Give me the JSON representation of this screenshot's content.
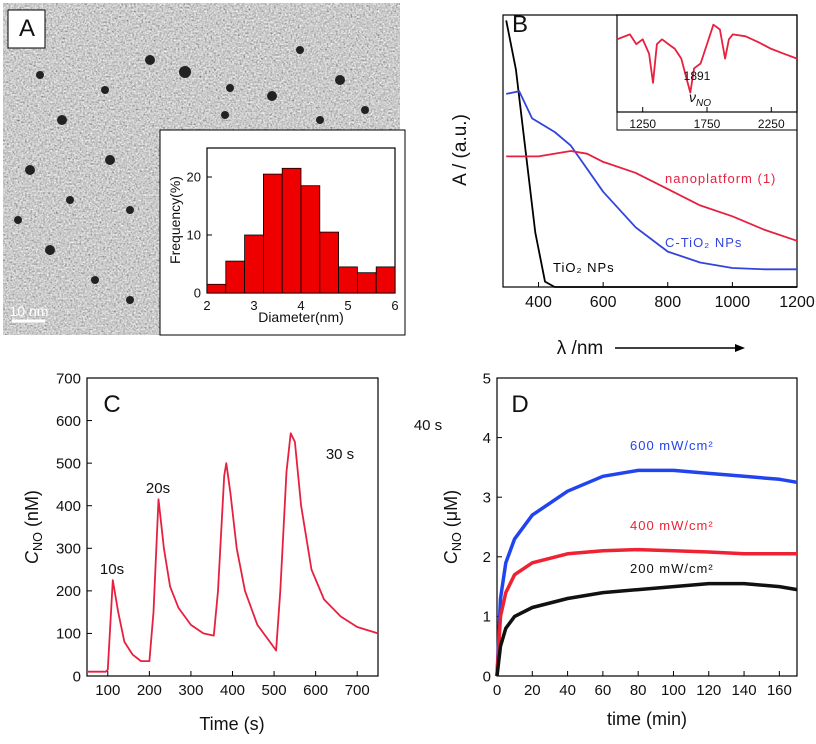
{
  "chart_data": [
    {
      "type": "histogram",
      "panel": "A",
      "scale_bar": "10 nm",
      "xlabel": "Diameter(nm)",
      "ylabel": "Frequency(%)",
      "bins": [
        2.0,
        2.4,
        2.8,
        3.2,
        3.6,
        4.0,
        4.4,
        4.8,
        5.2,
        5.6,
        6.0
      ],
      "values": [
        1.5,
        5.5,
        10,
        20.5,
        21.5,
        18.5,
        10.5,
        4.5,
        3.5,
        4.5
      ],
      "color": "#ee0000",
      "xlim": [
        2,
        6
      ],
      "xticks": [
        2,
        3,
        4,
        5,
        6
      ],
      "ylim": [
        0,
        25
      ],
      "yticks": [
        0,
        10,
        20
      ]
    },
    {
      "type": "line",
      "panel": "B",
      "xlabel": "λ /nm",
      "ylabel": "A / (a.u.)",
      "xlim": [
        290,
        1200
      ],
      "xticks": [
        400,
        600,
        800,
        1000,
        1200
      ],
      "ylim": [
        0,
        1
      ],
      "series": [
        {
          "name": "TiO₂ NPs",
          "color": "#000000",
          "x": [
            300,
            330,
            360,
            390,
            420,
            450,
            600,
            800,
            1000,
            1200
          ],
          "values": [
            0.98,
            0.8,
            0.5,
            0.2,
            0.02,
            0.0,
            0.0,
            0.0,
            0.0,
            0.0
          ]
        },
        {
          "name": "C-TiO₂ NPs",
          "color": "#3344dd",
          "x": [
            300,
            340,
            380,
            450,
            500,
            600,
            700,
            800,
            900,
            1000,
            1100,
            1200
          ],
          "values": [
            0.71,
            0.72,
            0.62,
            0.57,
            0.52,
            0.35,
            0.22,
            0.13,
            0.09,
            0.07,
            0.065,
            0.065
          ]
        },
        {
          "name": "nanoplatform (1)",
          "color": "#e82040",
          "x": [
            300,
            400,
            500,
            550,
            600,
            700,
            800,
            900,
            1000,
            1100,
            1200
          ],
          "values": [
            0.48,
            0.48,
            0.5,
            0.49,
            0.46,
            0.42,
            0.36,
            0.3,
            0.26,
            0.21,
            0.17
          ]
        }
      ]
    },
    {
      "type": "line",
      "annotations": [
        "1891"
      ],
      "symbol": "ν",
      "symbol_sub": "NO",
      "xlim": [
        1050,
        2450
      ],
      "xticks": [
        1250,
        1750,
        2250
      ],
      "ylim": [
        0,
        1
      ],
      "color": "#e82040",
      "x": [
        1050,
        1150,
        1200,
        1250,
        1300,
        1330,
        1360,
        1400,
        1450,
        1500,
        1550,
        1600,
        1620,
        1650,
        1700,
        1750,
        1800,
        1850,
        1891,
        1920,
        1950,
        2050,
        2150,
        2250,
        2350,
        2450
      ],
      "values": [
        0.75,
        0.8,
        0.7,
        0.75,
        0.6,
        0.3,
        0.7,
        0.75,
        0.7,
        0.65,
        0.55,
        0.3,
        0.2,
        0.45,
        0.5,
        0.7,
        0.9,
        0.85,
        0.55,
        0.75,
        0.8,
        0.78,
        0.72,
        0.65,
        0.6,
        0.55
      ]
    },
    {
      "type": "line",
      "panel": "C",
      "xlabel": "Time (s)",
      "ylabel": {
        "symbol": "C",
        "subscript": "NO",
        "unit": " (nM)"
      },
      "annotations": [
        "10s",
        "20s",
        "30 s",
        "40 s"
      ],
      "xlim": [
        50,
        750
      ],
      "xticks": [
        100,
        200,
        300,
        400,
        500,
        600,
        700
      ],
      "ylim": [
        0,
        700
      ],
      "yticks": [
        0,
        100,
        200,
        300,
        400,
        500,
        600,
        700
      ],
      "color": "#e82040",
      "x": [
        50,
        95,
        100,
        112,
        125,
        140,
        160,
        180,
        200,
        210,
        222,
        235,
        250,
        270,
        300,
        330,
        355,
        365,
        380,
        385,
        395,
        410,
        430,
        460,
        490,
        505,
        515,
        530,
        540,
        550,
        565,
        590,
        620,
        660,
        700,
        750
      ],
      "values": [
        10,
        10,
        15,
        225,
        150,
        80,
        50,
        35,
        35,
        150,
        415,
        300,
        210,
        160,
        120,
        100,
        95,
        200,
        470,
        500,
        430,
        300,
        200,
        120,
        80,
        60,
        200,
        480,
        570,
        550,
        400,
        250,
        180,
        140,
        115,
        100
      ]
    },
    {
      "type": "line",
      "panel": "D",
      "xlabel": "time (min)",
      "ylabel": {
        "symbol": "C",
        "subscript": "NO",
        "unit": " (μM)"
      },
      "xlim": [
        0,
        170
      ],
      "xticks": [
        0,
        20,
        40,
        60,
        80,
        100,
        120,
        140,
        160
      ],
      "ylim": [
        0,
        5
      ],
      "yticks": [
        0,
        1,
        2,
        3,
        4,
        5
      ],
      "series": [
        {
          "name": "600 mW/cm²",
          "color": "#2244ee",
          "x": [
            0,
            2,
            5,
            10,
            20,
            40,
            60,
            80,
            100,
            120,
            140,
            160,
            170
          ],
          "values": [
            0,
            1.3,
            1.9,
            2.3,
            2.7,
            3.1,
            3.35,
            3.45,
            3.45,
            3.4,
            3.35,
            3.3,
            3.25
          ]
        },
        {
          "name": "400 mW/cm²",
          "color": "#ee2233",
          "x": [
            0,
            2,
            5,
            10,
            20,
            40,
            60,
            80,
            100,
            120,
            140,
            160,
            170
          ],
          "values": [
            0,
            1.0,
            1.4,
            1.7,
            1.9,
            2.05,
            2.1,
            2.12,
            2.1,
            2.08,
            2.05,
            2.05,
            2.05
          ]
        },
        {
          "name": "200 mW/cm²",
          "color": "#111111",
          "x": [
            0,
            2,
            5,
            10,
            20,
            40,
            60,
            80,
            100,
            120,
            140,
            160,
            170
          ],
          "values": [
            0,
            0.5,
            0.8,
            1.0,
            1.15,
            1.3,
            1.4,
            1.45,
            1.5,
            1.55,
            1.55,
            1.5,
            1.45
          ]
        }
      ]
    }
  ]
}
